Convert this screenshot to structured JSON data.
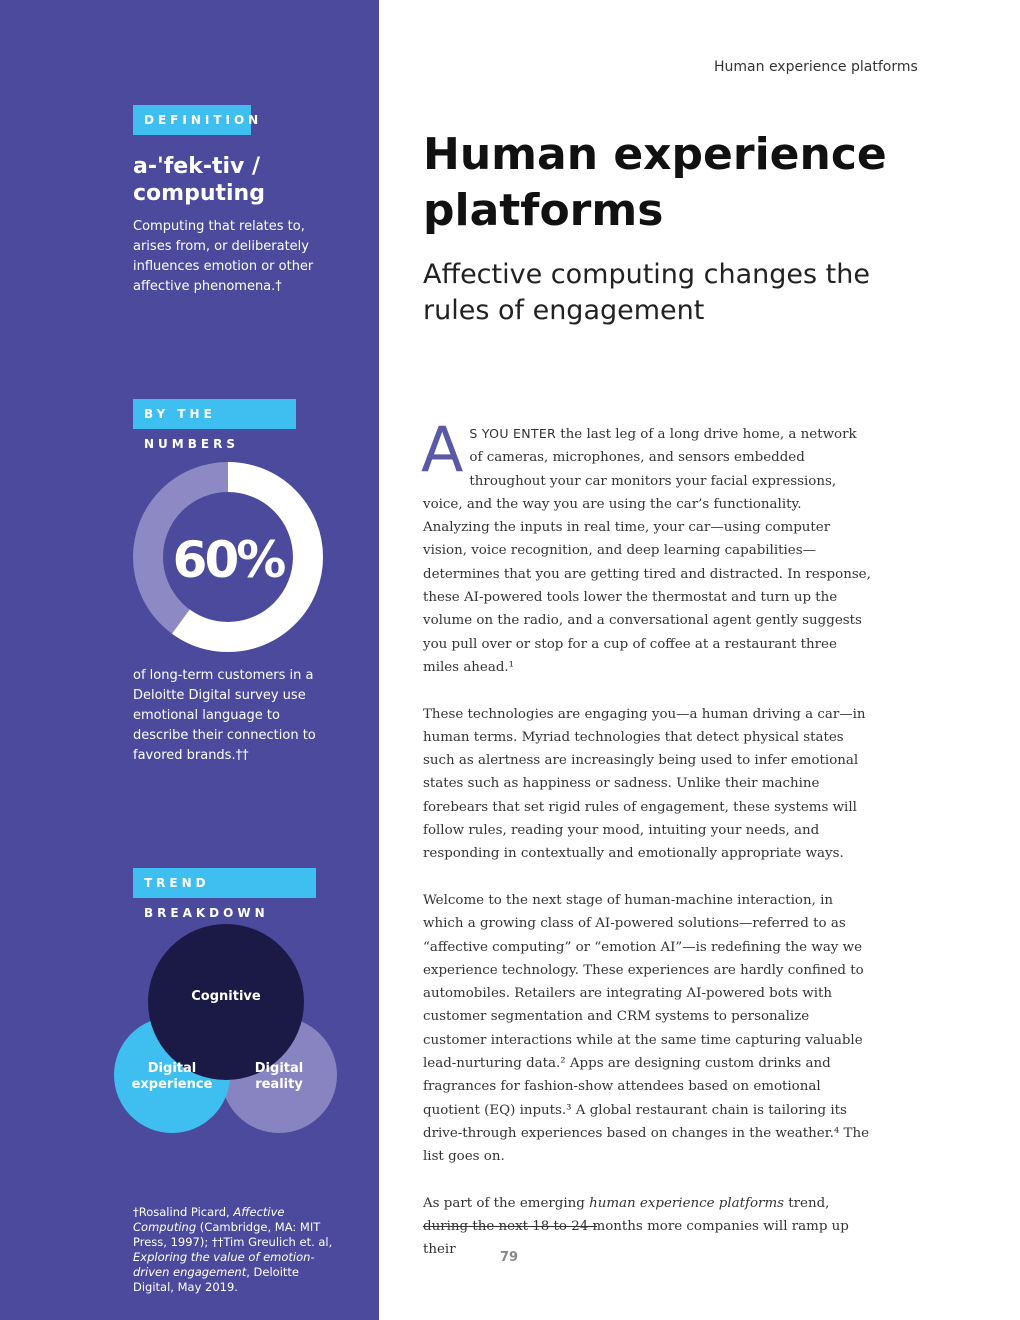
{
  "header": {
    "running_title": "Human experience platforms"
  },
  "sidebar": {
    "definition": {
      "tag": "DEFINITION",
      "term": "a-'fek-tiv / computing",
      "text": "Computing that relates to, arises from, or deliberately influences emotion or other affective phenomena.†"
    },
    "numbers": {
      "tag": "BY THE NUMBERS",
      "stat": "60%",
      "stat_value_percent": 60,
      "text": "of long-term customers in a Deloitte Digital survey use emotional language to describe their connection to favored brands.††"
    },
    "trend": {
      "tag": "TREND BREAKDOWN",
      "circles": [
        "Cognitive",
        "Digital",
        "experience",
        "Digital",
        "reality"
      ]
    },
    "footnote": {
      "p1": "†Rosalind Picard, ",
      "p2": "Affective Computing",
      "p3": " (Cambridge, MA: MIT Press, 1997); ††Tim Greulich et. al, ",
      "p4": "Exploring  the value of emotion-driven engagement",
      "p5": ", Deloitte Digital, May 2019."
    }
  },
  "main": {
    "title": "Human experience platforms",
    "subtitle": "Affective computing changes the rules of engagement",
    "dropcap": "A",
    "lead": "S YOU ENTER",
    "p1_rest": " the last leg of a long drive home, a network of cameras, microphones, and sensors embedded throughout your car monitors your facial expressions, voice, and the way you are using the car’s functionality. Analyzing the inputs in real time, your car—using computer vision, voice recognition, and deep learning capabilities—determines that you are getting tired and distracted. In response, these AI-powered tools lower the thermostat and turn up the volume on the radio, and a conversational agent gently suggests you pull over or stop for a cup of coffee at a restaurant three miles ahead.¹",
    "p2": "These technologies are engaging you—a human driving a car—in human terms. Myriad technologies that detect physical states such as alertness are increasingly being used to infer emotional states such as happiness or sadness. Unlike their machine forebears that set rigid rules of engagement, these systems will follow rules, reading your mood, intuiting your needs, and responding in contextually and emotionally appropriate ways.",
    "p3": "Welcome to the next stage of human-machine interaction, in which a growing class of AI-powered solutions—referred to as “affective computing” or “emotion AI”—is redefining the way we experience technology. These experiences are hardly confined to automobiles. Retailers are integrating AI-powered bots with customer segmentation and CRM systems to personalize customer interactions while at the same time capturing valuable lead-nurturing data.² Apps are designing custom drinks and fragrances for fashion-show attendees based on emotional quotient (EQ) inputs.³ A global restaurant chain is tailoring its drive-through experiences based on changes in the weather.⁴ The list goes on.",
    "p4_a": "As part of the emerging ",
    "p4_em": "human experience platforms",
    "p4_b": " trend, during the next 18 to 24 months more companies will ramp up their",
    "page_number": "79"
  },
  "colors": {
    "sidebar": "#4b4a9c",
    "tag": "#3fbfef",
    "donut_light": "#8c89c4",
    "cognitive": "#1b1945",
    "experience": "#3fbfef",
    "reality": "#8784c1"
  }
}
